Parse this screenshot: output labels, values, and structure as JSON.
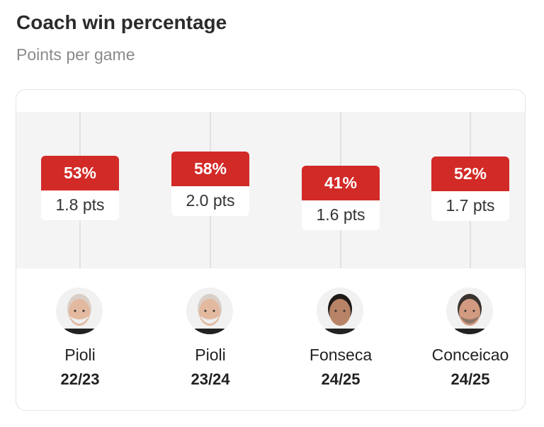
{
  "chart_data": {
    "type": "table",
    "title": "Coach win percentage",
    "subtitle": "Points per game",
    "entries": [
      {
        "coach": "Pioli",
        "season": "22/23",
        "win_pct": 53,
        "win_label": "53%",
        "pts_label": "1.8 pts",
        "points_per_game": 1.8,
        "avatar": "bald-grey-beard"
      },
      {
        "coach": "Pioli",
        "season": "23/24",
        "win_pct": 58,
        "win_label": "58%",
        "pts_label": "2.0 pts",
        "points_per_game": 2.0,
        "avatar": "bald-grey-beard"
      },
      {
        "coach": "Fonseca",
        "season": "24/25",
        "win_pct": 41,
        "win_label": "41%",
        "pts_label": "1.6 pts",
        "points_per_game": 1.6,
        "avatar": "dark-hair"
      },
      {
        "coach": "Conceicao",
        "season": "24/25",
        "win_pct": 52,
        "win_label": "52%",
        "pts_label": "1.7 pts",
        "points_per_game": 1.7,
        "avatar": "short-dark-hair"
      }
    ]
  },
  "colors": {
    "accent": "#d22a27"
  }
}
